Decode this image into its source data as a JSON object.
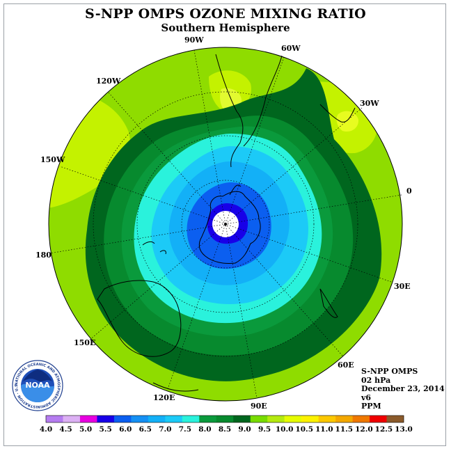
{
  "title": "S-NPP OMPS OZONE MIXING RATIO",
  "subtitle": "Southern Hemisphere",
  "longitude_labels": [
    "90W",
    "60W",
    "30W",
    "0",
    "30E",
    "60E",
    "90E",
    "120E",
    "150E",
    "180",
    "150W",
    "120W"
  ],
  "info": {
    "instrument": "S-NPP OMPS",
    "level": "02 hPa",
    "date": "December 23, 2014",
    "version": "v6",
    "units": "PPM"
  },
  "logo": {
    "name": "NOAA",
    "ring_text": "NATIONAL OCEANIC AND ATMOSPHERIC ADMINISTRATION · U.S. DEPARTMENT OF COMMERCE"
  },
  "colorbar": {
    "ticks": [
      "4.0",
      "4.5",
      "5.0",
      "5.5",
      "6.0",
      "6.5",
      "7.0",
      "7.5",
      "8.0",
      "8.5",
      "9.0",
      "9.5",
      "10.0",
      "10.5",
      "11.0",
      "11.5",
      "12.0",
      "12.5",
      "13.0"
    ],
    "colors": [
      "#b57cf0",
      "#dcb0f4",
      "#e800e0",
      "#1800e8",
      "#0b5ff0",
      "#1590f4",
      "#13b0f7",
      "#1ccaf7",
      "#2af2dc",
      "#0a9a3c",
      "#078a2e",
      "#00661e",
      "#78dc00",
      "#b4ea10",
      "#e6fc00",
      "#fcf200",
      "#fcc800",
      "#f4a800",
      "#f07800",
      "#f00000",
      "#8b5a2b"
    ]
  },
  "colors": {
    "background_outside": "#ffffff",
    "frame": "#9aa0a6",
    "polar_no_data": "#ffffff"
  }
}
